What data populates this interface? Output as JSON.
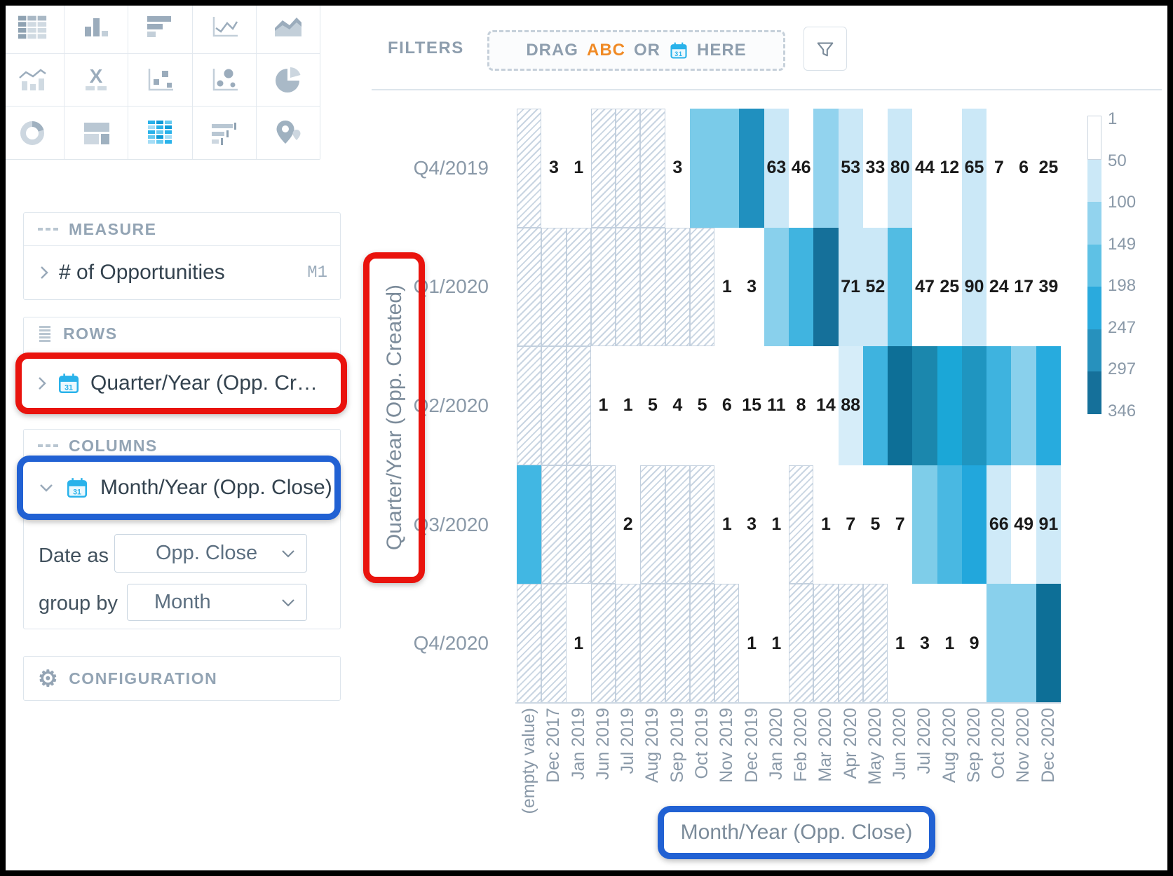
{
  "sidebar": {
    "visualization_icons": [
      "table",
      "column-chart",
      "bar-chart",
      "line-chart",
      "area-chart",
      "combo-chart",
      "headline",
      "scatter-plot",
      "bubble-chart",
      "pie-chart",
      "donut-chart",
      "treemap",
      "heatmap",
      "bullet-chart",
      "geo-pushpin"
    ],
    "active_visualization": "heatmap",
    "measure": {
      "header": "MEASURE",
      "item": "# of Opportunities",
      "badge": "M1"
    },
    "rows": {
      "header": "ROWS",
      "item": "Quarter/Year (Opp. Cr…"
    },
    "columns": {
      "header": "COLUMNS",
      "item": "Month/Year (Opp. Close)",
      "date_as": {
        "label": "Date as",
        "value": "Opp. Close"
      },
      "group_by": {
        "label": "group by",
        "value": "Month"
      }
    },
    "configuration": {
      "header": "CONFIGURATION"
    }
  },
  "filters": {
    "label": "FILTERS",
    "dropzone": {
      "drag": "DRAG",
      "abc": "ABC",
      "or": "OR",
      "here": "HERE"
    }
  },
  "annotation_colors": {
    "red": "#e9130d",
    "blue": "#2161d3"
  },
  "chart_data": {
    "type": "heatmap",
    "measure": "# of Opportunities",
    "x_axis_title": "Month/Year (Opp. Close)",
    "y_axis_title": "Quarter/Year (Opp. Created)",
    "rows": [
      "Q4/2019",
      "Q1/2020",
      "Q2/2020",
      "Q3/2020",
      "Q4/2020"
    ],
    "columns": [
      "(empty value)",
      "Dec 2017",
      "Jan 2019",
      "Jun 2019",
      "Jul 2019",
      "Aug 2019",
      "Sep 2019",
      "Oct 2019",
      "Nov 2019",
      "Dec 2019",
      "Jan 2020",
      "Feb 2020",
      "Mar 2020",
      "Apr 2020",
      "May 2020",
      "Jun 2020",
      "Jul 2020",
      "Aug 2020",
      "Sep 2020",
      "Oct 2020",
      "Nov 2020",
      "Dec 2020"
    ],
    "legend": {
      "stops": [
        "1",
        "50",
        "100",
        "149",
        "198",
        "247",
        "297",
        "346"
      ],
      "colors": [
        "#ffffff",
        "#cbe8f7",
        "#92d3ee",
        "#5ec1e5",
        "#2aaadd",
        "#2791bd",
        "#15709a"
      ],
      "position": "right"
    },
    "cells": [
      [
        {
          "h": true
        },
        {
          "v": "3",
          "bg": "#ffffff"
        },
        {
          "v": "1",
          "bg": "#ffffff"
        },
        {
          "h": true
        },
        {
          "h": true
        },
        {
          "h": true
        },
        {
          "v": "3",
          "bg": "#ffffff"
        },
        {
          "bg": "#7acbe9"
        },
        {
          "bg": "#7acbe9"
        },
        {
          "bg": "#2090bf"
        },
        {
          "v": "63",
          "bg": "#cbe8f7"
        },
        {
          "v": "46",
          "bg": "#ffffff"
        },
        {
          "bg": "#92d3ee"
        },
        {
          "v": "53",
          "bg": "#cbe8f7"
        },
        {
          "v": "33",
          "bg": "#ffffff"
        },
        {
          "v": "80",
          "bg": "#cbe8f7"
        },
        {
          "v": "44",
          "bg": "#ffffff"
        },
        {
          "v": "12",
          "bg": "#ffffff"
        },
        {
          "v": "65",
          "bg": "#cbe8f7"
        },
        {
          "v": "7",
          "bg": "#ffffff"
        },
        {
          "v": "6",
          "bg": "#ffffff"
        },
        {
          "v": "25",
          "bg": "#ffffff"
        }
      ],
      [
        {
          "h": true
        },
        {
          "h": true
        },
        {
          "h": true
        },
        {
          "h": true
        },
        {
          "h": true
        },
        {
          "h": true
        },
        {
          "h": true
        },
        {
          "h": true
        },
        {
          "v": "1",
          "bg": "#ffffff"
        },
        {
          "v": "3",
          "bg": "#ffffff"
        },
        {
          "bg": "#89d0ec"
        },
        {
          "bg": "#40b4e0"
        },
        {
          "bg": "#15709a"
        },
        {
          "v": "71",
          "bg": "#cbe8f7"
        },
        {
          "v": "52",
          "bg": "#cbe8f7"
        },
        {
          "bg": "#52bce3"
        },
        {
          "v": "47",
          "bg": "#ffffff"
        },
        {
          "v": "25",
          "bg": "#ffffff"
        },
        {
          "v": "90",
          "bg": "#cbe8f7"
        },
        {
          "v": "24",
          "bg": "#ffffff"
        },
        {
          "v": "17",
          "bg": "#ffffff"
        },
        {
          "v": "39",
          "bg": "#ffffff"
        }
      ],
      [
        {
          "h": true
        },
        {
          "h": true
        },
        {
          "h": true
        },
        {
          "v": "1",
          "bg": "#ffffff"
        },
        {
          "v": "1",
          "bg": "#ffffff"
        },
        {
          "v": "5",
          "bg": "#ffffff"
        },
        {
          "v": "4",
          "bg": "#ffffff"
        },
        {
          "v": "5",
          "bg": "#ffffff"
        },
        {
          "v": "6",
          "bg": "#ffffff"
        },
        {
          "v": "15",
          "bg": "#ffffff"
        },
        {
          "v": "11",
          "bg": "#ffffff"
        },
        {
          "v": "8",
          "bg": "#ffffff"
        },
        {
          "v": "14",
          "bg": "#ffffff"
        },
        {
          "v": "88",
          "bg": "#d6edf9"
        },
        {
          "bg": "#3eb3df"
        },
        {
          "bg": "#0d6f97"
        },
        {
          "bg": "#1b87ad"
        },
        {
          "bg": "#1ba7d7"
        },
        {
          "bg": "#1f95c0"
        },
        {
          "bg": "#3eb3df"
        },
        {
          "bg": "#89d0ec"
        },
        {
          "bg": "#27abde"
        }
      ],
      [
        {
          "bg": "#41b7e3"
        },
        {
          "h": true
        },
        {
          "h": true
        },
        {
          "h": true
        },
        {
          "v": "2",
          "bg": "#ffffff"
        },
        {
          "h": true
        },
        {
          "h": true
        },
        {
          "h": true
        },
        {
          "v": "1",
          "bg": "#ffffff"
        },
        {
          "v": "3",
          "bg": "#ffffff"
        },
        {
          "v": "1",
          "bg": "#ffffff"
        },
        {
          "h": true
        },
        {
          "v": "1",
          "bg": "#ffffff"
        },
        {
          "v": "7",
          "bg": "#ffffff"
        },
        {
          "v": "5",
          "bg": "#ffffff"
        },
        {
          "v": "7",
          "bg": "#ffffff"
        },
        {
          "bg": "#7ecde9"
        },
        {
          "bg": "#49b8e2"
        },
        {
          "bg": "#22a7dc"
        },
        {
          "v": "66",
          "bg": "#cfeaf8"
        },
        {
          "v": "49",
          "bg": "#ffffff"
        },
        {
          "v": "91",
          "bg": "#cfeaf8"
        }
      ],
      [
        {
          "h": true
        },
        {
          "h": true
        },
        {
          "v": "1",
          "bg": "#ffffff"
        },
        {
          "h": true
        },
        {
          "h": true
        },
        {
          "h": true
        },
        {
          "h": true
        },
        {
          "h": true
        },
        {
          "h": true
        },
        {
          "v": "1",
          "bg": "#ffffff"
        },
        {
          "v": "1",
          "bg": "#ffffff"
        },
        {
          "h": true
        },
        {
          "h": true
        },
        {
          "h": true
        },
        {
          "h": true
        },
        {
          "v": "1",
          "bg": "#ffffff"
        },
        {
          "v": "3",
          "bg": "#ffffff"
        },
        {
          "v": "1",
          "bg": "#ffffff"
        },
        {
          "v": "9",
          "bg": "#ffffff"
        },
        {
          "bg": "#89d0ec"
        },
        {
          "bg": "#89d0ec"
        },
        {
          "bg": "#0d6f97"
        }
      ]
    ]
  }
}
